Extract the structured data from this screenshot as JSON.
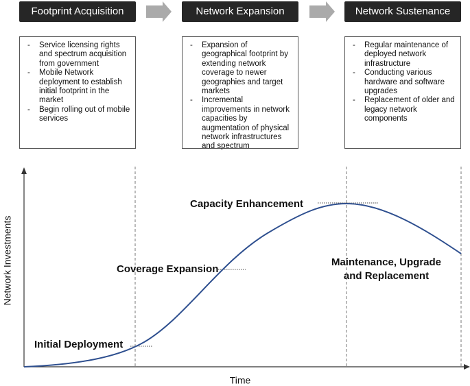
{
  "phases": [
    {
      "title": "Footprint Acquisition",
      "bullets": [
        "Service licensing rights and spectrum acquisition from government",
        "Mobile Network deployment to establish initial footprint in the market",
        "Begin rolling out of mobile services"
      ]
    },
    {
      "title": "Network Expansion",
      "bullets": [
        "Expansion of geographical footprint by extending network coverage to newer geographies and target markets",
        "Incremental improvements in network capacities by augmentation of physical network infrastructures and spectrum"
      ]
    },
    {
      "title": "Network Sustenance",
      "bullets": [
        "Regular maintenance of deployed network infrastructure",
        "Conducting various hardware and software upgrades",
        "Replacement of older and legacy network components"
      ]
    }
  ],
  "chart": {
    "y_label": "Network Investments",
    "x_label": "Time",
    "annotations": [
      "Initial Deployment",
      "Coverage Expansion",
      "Capacity Enhancement",
      "Maintenance, Upgrade and Replacement"
    ]
  }
}
